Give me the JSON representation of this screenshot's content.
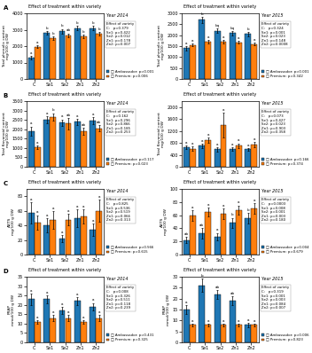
{
  "chart_data": [
    {
      "type": "bar",
      "title": "Effect of treatment within variety",
      "ylabel": "Total phenolic content\nmg/100 g DW",
      "categories": [
        "C",
        "Se1",
        "Se2",
        "Zn1",
        "Zn2"
      ],
      "ylim": [
        0,
        4000
      ],
      "yticks": [
        0,
        1000,
        2000,
        3000,
        4000
      ],
      "series": [
        {
          "name": "□ Ambassador: p=0.001",
          "values": [
            1300,
            2800,
            2900,
            3100,
            3100
          ],
          "error": [
            100,
            120,
            150,
            130,
            140
          ],
          "letters": [
            "a",
            "b",
            "b",
            "b",
            "b"
          ]
        },
        {
          "name": "□ Premium: p=0.006",
          "values": [
            1950,
            2500,
            2650,
            2600,
            2750
          ],
          "error": [
            80,
            110,
            130,
            110,
            100
          ],
          "letters": [
            "a",
            "b",
            "ab",
            "b",
            "b"
          ]
        }
      ],
      "panel_label": "A",
      "year_label": "Year 2014",
      "box_title": "Effect of variety",
      "box_lines": [
        "C:   p=0.379",
        "Se1: p=0.422",
        "Se2: p=0.012",
        "Zn1: p=0.178",
        "Zn2: p=0.007"
      ]
    },
    {
      "type": "bar",
      "title": "Effect of treatment within variety",
      "ylabel": "Total phenolic content\nmg/100 g DW",
      "categories": [
        "C",
        "Se1",
        "Se2",
        "Zn1",
        "Zn2"
      ],
      "ylim": [
        0,
        3000
      ],
      "yticks": [
        0,
        500,
        1000,
        1500,
        2000,
        2500,
        3000
      ],
      "series": [
        {
          "name": "□ Ambassador: p=0.001",
          "values": [
            1400,
            2700,
            2200,
            2100,
            2050
          ],
          "error": [
            100,
            130,
            110,
            100,
            90
          ],
          "letters": [
            "a",
            "b",
            "bq",
            "bq",
            "b"
          ]
        },
        {
          "name": "□ Premium: p=0.342",
          "values": [
            1550,
            1700,
            1700,
            1680,
            1600
          ],
          "error": [
            60,
            75,
            85,
            75,
            65
          ],
          "letters": [
            "a",
            "a",
            "a",
            "a",
            "a"
          ]
        }
      ],
      "year_label": "Year 2015",
      "box_title": "Effect of variety",
      "box_lines": [
        "C:   p=0.324",
        "Se1: p=0.001",
        "Se2: p=0.023",
        "Zn1: p=0.148",
        "Zn2: p=0.0008"
      ]
    },
    {
      "type": "bar",
      "title": "Effect of treatment within variety",
      "ylabel": "Total flavonoid content\nmg/100 g DW",
      "categories": [
        "C",
        "Se1",
        "Se2",
        "Zn1",
        "Zn2"
      ],
      "ylim": [
        0,
        3500
      ],
      "yticks": [
        0,
        500,
        1000,
        1500,
        2000,
        2500,
        3000,
        3500
      ],
      "series": [
        {
          "name": "□ Ambassador: p=0.117",
          "values": [
            1900,
            2500,
            2350,
            2400,
            2450
          ],
          "error": [
            250,
            200,
            180,
            170,
            200
          ],
          "letters": [
            "a",
            "a",
            "a",
            "a",
            "a"
          ]
        },
        {
          "name": "□ Premium: p=0.023",
          "values": [
            1050,
            2650,
            2300,
            1900,
            2050
          ],
          "error": [
            100,
            210,
            310,
            185,
            155
          ],
          "letters": [
            "a",
            "b",
            "ab",
            "ab",
            "ab"
          ]
        }
      ],
      "panel_label": "B",
      "year_label": "Year 2014",
      "box_title": "Effect of variety",
      "box_lines": [
        "C:   p=0.162",
        "Se1: p=0.296",
        "Se2: p=0.866",
        "Zn1: p=0.185",
        "Zn2: p=0.253"
      ]
    },
    {
      "type": "bar",
      "title": "Effect of treatment within variety",
      "ylabel": "Total flavonoid content\nmg/100 g DW",
      "categories": [
        "C",
        "Se1",
        "Se2",
        "Zn1",
        "Zn2"
      ],
      "ylim": [
        0,
        2200
      ],
      "yticks": [
        0,
        400,
        800,
        1200,
        1600,
        2000
      ],
      "series": [
        {
          "name": "□ Ambassador: p=0.166",
          "values": [
            650,
            700,
            580,
            600,
            580
          ],
          "error": [
            60,
            70,
            60,
            55,
            50
          ],
          "letters": [
            "a",
            "a",
            "a",
            "a",
            "a"
          ]
        },
        {
          "name": "□ Premium: p=0.374",
          "values": [
            600,
            900,
            1400,
            700,
            750
          ],
          "error": [
            70,
            85,
            420,
            85,
            90
          ],
          "letters": [
            "a",
            "a",
            "a",
            "a",
            "a"
          ]
        }
      ],
      "year_label": "Year 2015",
      "box_title": "Effect of variety",
      "box_lines": [
        "C:   p=0.073",
        "Se1: p=0.427",
        "Se2: p=0.023",
        "Zn1: p=0.903",
        "Zn2: p=0.358"
      ]
    },
    {
      "type": "bar",
      "title": "Effect of treatment within variety",
      "ylabel": "ABTS\nmg/100 g DW",
      "categories": [
        "C",
        "Se1",
        "Se2",
        "Zn1",
        "Zn2"
      ],
      "ylim": [
        0,
        90
      ],
      "yticks": [
        0,
        20,
        40,
        60,
        80
      ],
      "series": [
        {
          "name": "□ Ambassador: p=0.566",
          "values": [
            57,
            40,
            22,
            50,
            34
          ],
          "error": [
            15,
            10,
            5,
            12,
            8
          ],
          "letters": [
            "a",
            "a",
            "a",
            "a",
            "a"
          ]
        },
        {
          "name": "□ Premium: p=0.615",
          "values": [
            44,
            47,
            48,
            52,
            60
          ],
          "error": [
            10,
            12,
            8,
            10,
            15
          ],
          "letters": [
            "a",
            "a",
            "a",
            "a",
            "a"
          ]
        }
      ],
      "panel_label": "C",
      "year_label": "Year 2014",
      "box_title": "Effect of variety",
      "box_lines": [
        "C:   p=0.825",
        "Se1: p=0.536",
        "Se2: p=0.519",
        "Zn1: p=0.066",
        "Zn2: p=0.313"
      ]
    },
    {
      "type": "bar",
      "title": "Effect of treatment within variety",
      "ylabel": "ABTS\nmg/100 g DW",
      "categories": [
        "C",
        "Se1",
        "Se2",
        "Zn1",
        "Zn2"
      ],
      "ylim": [
        0,
        100
      ],
      "yticks": [
        0,
        20,
        40,
        60,
        80,
        100
      ],
      "series": [
        {
          "name": "□ Ambassador: p=0.004",
          "values": [
            22,
            32,
            27,
            48,
            55
          ],
          "error": [
            5,
            8,
            6,
            8,
            8
          ],
          "letters": [
            "ab",
            "ab",
            "a",
            "b",
            "b"
          ]
        },
        {
          "name": "□ Premium: p=0.679",
          "values": [
            60,
            65,
            62,
            68,
            70
          ],
          "error": [
            8,
            7,
            8,
            7,
            8
          ],
          "letters": [
            "a",
            "a",
            "a",
            "a",
            "a"
          ]
        }
      ],
      "year_label": "Year 2015",
      "box_title": "Effect of variety",
      "box_lines": [
        "C:   p=0.0003",
        "Se1: p=0.008",
        "Se2: p=0.001",
        "Zn1: p=0.003",
        "Zn2: p=0.180"
      ]
    },
    {
      "type": "bar",
      "title": "Effect of treatment within variety",
      "ylabel": "FRAP\nmmol/100 g DW",
      "categories": [
        "C",
        "Se1",
        "Se2",
        "Zn1",
        "Zn2"
      ],
      "ylim": [
        0,
        35
      ],
      "yticks": [
        0,
        5,
        10,
        15,
        20,
        25,
        30,
        35
      ],
      "series": [
        {
          "name": "□ Ambassador: p=0.431",
          "values": [
            23,
            23,
            17,
            22,
            19
          ],
          "error": [
            3,
            2,
            2,
            2,
            2
          ],
          "letters": [
            "a",
            "a",
            "a",
            "a",
            "a"
          ]
        },
        {
          "name": "□ Premium: p=0.325",
          "values": [
            11,
            13,
            13,
            11,
            13
          ],
          "error": [
            1,
            1.5,
            1.5,
            1,
            1.5
          ],
          "letters": [
            "a",
            "a",
            "a",
            "a",
            "a"
          ]
        }
      ],
      "panel_label": "D",
      "year_label": "Year 2014",
      "box_title": "Effect of variety",
      "box_lines": [
        "C:   p=0.008",
        "Se1: p=0.326",
        "Se2: p=0.511",
        "Zn1: p=0.118",
        "Zn2: p=0.239"
      ]
    },
    {
      "type": "bar",
      "title": "Effect of treatment within variety",
      "ylabel": "FRAP\nmmol/100 g DW",
      "categories": [
        "C",
        "Se1",
        "Se2",
        "Zn1",
        "Zn2"
      ],
      "ylim": [
        0,
        30
      ],
      "yticks": [
        0,
        5,
        10,
        15,
        20,
        25,
        30
      ],
      "series": [
        {
          "name": "□ Ambassador: p=0.006",
          "values": [
            15,
            26,
            22,
            19,
            8
          ],
          "error": [
            2,
            3,
            2,
            2,
            1
          ],
          "letters": [
            "a",
            "b",
            "ab",
            "ab",
            "a"
          ]
        },
        {
          "name": "□ Premium: p=0.823",
          "values": [
            8,
            8,
            8,
            8,
            8
          ],
          "error": [
            0.5,
            0.5,
            0.5,
            0.5,
            0.5
          ],
          "letters": [
            "a",
            "a",
            "a",
            "a",
            "a"
          ]
        }
      ],
      "year_label": "Year 2015",
      "box_title": "Effect of variety",
      "box_lines": [
        "C:   p=0.319",
        "Se1: p=0.001",
        "Se2: p=0.003",
        "Zn1: p=0.084",
        "Zn2: p=0.007"
      ]
    }
  ]
}
